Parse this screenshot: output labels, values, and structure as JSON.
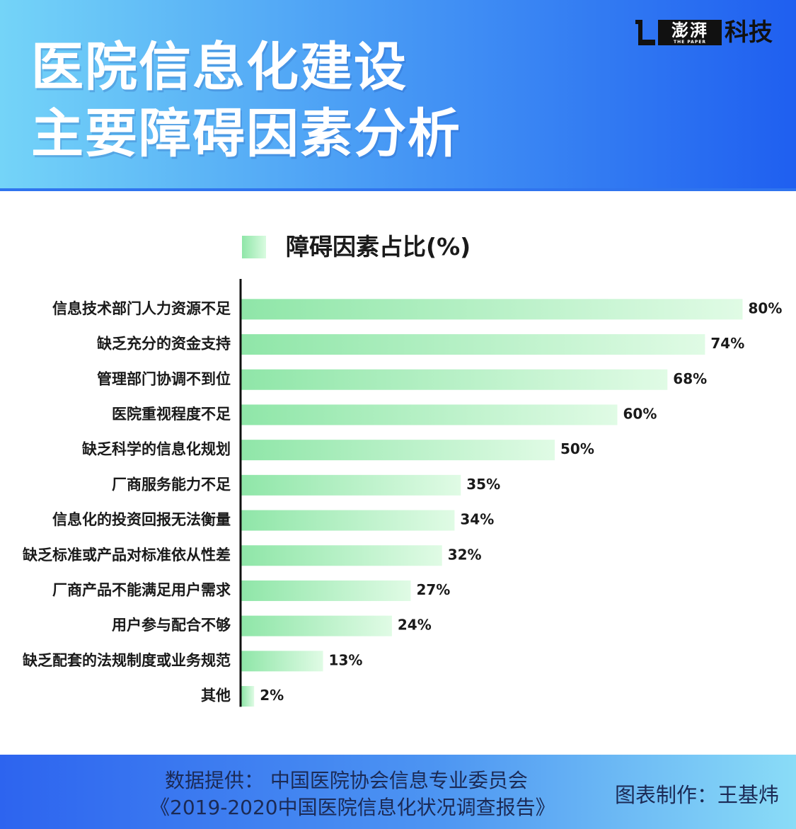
{
  "header": {
    "title_line1": "医院信息化建设",
    "title_line2": "主要障碍因素分析",
    "logo_mark_text": "澎湃",
    "logo_mark_sub": "THE PAPER",
    "logo_text": "科技"
  },
  "footer": {
    "source_line1": "数据提供：  中国医院协会信息专业委员会",
    "source_line2": "《2019-2020中国医院信息化状况调查报告》",
    "maker": "图表制作：王基炜"
  },
  "colors": {
    "bar_start": "#8fe6a8",
    "bar_end": "#e0fbe5",
    "header_start": "#74d4f8",
    "header_end": "#1f5ff0"
  },
  "chart_data": {
    "type": "bar",
    "orientation": "horizontal",
    "legend": "top",
    "title": "",
    "xlabel": "",
    "ylabel": "",
    "xlim": [
      0,
      80
    ],
    "grid": false,
    "series": [
      {
        "name": "障碍因素占比(%)",
        "values": [
          80,
          74,
          68,
          60,
          50,
          35,
          34,
          32,
          27,
          24,
          13,
          2
        ],
        "labels": [
          "80%",
          "74%",
          "68%",
          "60%",
          "50%",
          "35%",
          "34%",
          "32%",
          "27%",
          "24%",
          "13%",
          "2%"
        ]
      }
    ],
    "categories": [
      "信息技术部门人力资源不足",
      "缺乏充分的资金支持",
      "管理部门协调不到位",
      "医院重视程度不足",
      "缺乏科学的信息化规划",
      "厂商服务能力不足",
      "信息化的投资回报无法衡量",
      "缺乏标准或产品对标准依从性差",
      "厂商产品不能满足用户需求",
      "用户参与配合不够",
      "缺乏配套的法规制度或业务规范",
      "其他"
    ]
  }
}
